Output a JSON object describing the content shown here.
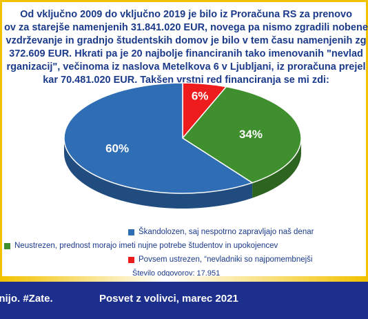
{
  "title_lines": [
    "Od vključno 2009 do vključno 2019 je bilo iz Proračuna RS za prenovo",
    "ov za starejše namenjenih 31.841.020 EUR, novega pa nismo zgradili nobene",
    "vzdrževanje in gradnjo študentskih domov je bilo v tem času namenjenih zg",
    "372.609 EUR. Hkrati pa je 20 najbolje financiranih tako imenovanih \"nevlad",
    "rganizacij\", večinoma iz naslova Metelkova 6 v Ljubljani, iz proračuna prejel",
    "kar 70.481.020 EUR. Takšen vrstni red financiranja se mi zdi:"
  ],
  "chart_data": {
    "type": "pie",
    "style": "3d",
    "slices": [
      {
        "label": "Škandolozen, saj nespotrno zapravljajo naš denar",
        "value": 60,
        "display": "60%",
        "color": "#2f6db5"
      },
      {
        "label": "Neustrezen, prednost morajo imeti nujne potrebe študentov in upokojencev",
        "value": 34,
        "display": "34%",
        "color": "#3f8f2e"
      },
      {
        "label": "Povsem ustrezen, “nevladniki so najpomembnejši",
        "value": 6,
        "display": "6%",
        "color": "#ee1c1c"
      }
    ],
    "legend_position": "bottom"
  },
  "responses": "Število odgovorov: 17.951",
  "footer": {
    "left": "enijo. #Zate.",
    "right": "Posvet z volivci, marec 2021"
  }
}
